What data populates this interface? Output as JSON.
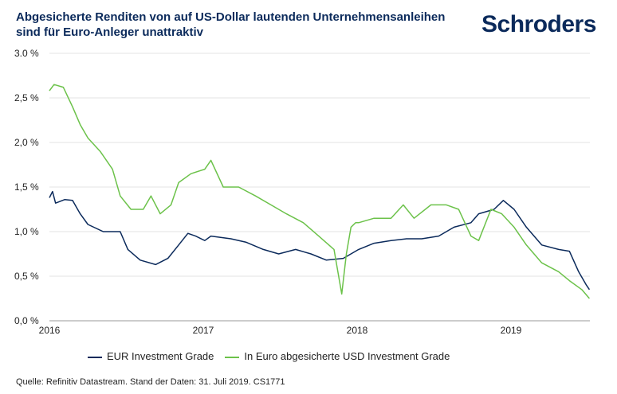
{
  "logo_text": "Schroders",
  "chart_data": {
    "type": "line",
    "title": "Abgesicherte Renditen von auf US-Dollar lautenden Unternehmensanleihen sind für Euro-Anleger unattraktiv",
    "xlabel": "",
    "ylabel": "",
    "xlim": [
      2016,
      2019.52
    ],
    "ylim": [
      0,
      3
    ],
    "y_ticks": [
      "0,0 %",
      "0,5 %",
      "1,0 %",
      "1,5 %",
      "2,0 %",
      "2,5 %",
      "3.0 %"
    ],
    "y_tick_values": [
      0,
      0.5,
      1,
      1.5,
      2,
      2.5,
      3
    ],
    "x_ticks": [
      "2016",
      "2017",
      "2018",
      "2019"
    ],
    "x_tick_values": [
      2016,
      2017,
      2018,
      2019
    ],
    "grid": true,
    "legend_position": "bottom",
    "series": [
      {
        "name": "EUR Investment Grade",
        "color": "#0b2a5b",
        "x": [
          2016.0,
          2016.02,
          2016.04,
          2016.1,
          2016.15,
          2016.2,
          2016.25,
          2016.35,
          2016.46,
          2016.51,
          2016.59,
          2016.69,
          2016.77,
          2016.84,
          2016.9,
          2016.95,
          2017.01,
          2017.05,
          2017.18,
          2017.28,
          2017.39,
          2017.49,
          2017.6,
          2017.7,
          2017.8,
          2017.91,
          2018.01,
          2018.11,
          2018.22,
          2018.32,
          2018.42,
          2018.53,
          2018.63,
          2018.74,
          2018.79,
          2018.89,
          2018.95,
          2019.02,
          2019.1,
          2019.2,
          2019.31,
          2019.38,
          2019.44,
          2019.49,
          2019.51
        ],
        "y": [
          1.38,
          1.45,
          1.32,
          1.36,
          1.35,
          1.2,
          1.08,
          1.0,
          1.0,
          0.8,
          0.68,
          0.63,
          0.7,
          0.85,
          0.98,
          0.95,
          0.9,
          0.95,
          0.92,
          0.88,
          0.8,
          0.75,
          0.8,
          0.75,
          0.68,
          0.7,
          0.8,
          0.87,
          0.9,
          0.92,
          0.92,
          0.95,
          1.05,
          1.1,
          1.2,
          1.25,
          1.35,
          1.25,
          1.05,
          0.85,
          0.8,
          0.78,
          0.55,
          0.4,
          0.35
        ]
      },
      {
        "name": "In Euro abgesicherte USD Investment Grade",
        "color": "#6cc24a",
        "x": [
          2016.0,
          2016.03,
          2016.09,
          2016.15,
          2016.2,
          2016.25,
          2016.33,
          2016.41,
          2016.46,
          2016.53,
          2016.61,
          2016.66,
          2016.72,
          2016.79,
          2016.84,
          2016.92,
          2017.01,
          2017.05,
          2017.13,
          2017.23,
          2017.34,
          2017.44,
          2017.54,
          2017.65,
          2017.75,
          2017.85,
          2017.9,
          2017.93,
          2017.96,
          2017.99,
          2018.01,
          2018.11,
          2018.22,
          2018.3,
          2018.37,
          2018.48,
          2018.58,
          2018.66,
          2018.74,
          2018.79,
          2018.87,
          2018.94,
          2019.02,
          2019.1,
          2019.2,
          2019.31,
          2019.38,
          2019.46,
          2019.51
        ],
        "y": [
          2.58,
          2.65,
          2.62,
          2.4,
          2.2,
          2.05,
          1.9,
          1.7,
          1.4,
          1.25,
          1.25,
          1.4,
          1.2,
          1.3,
          1.55,
          1.65,
          1.7,
          1.8,
          1.5,
          1.5,
          1.4,
          1.3,
          1.2,
          1.1,
          0.95,
          0.8,
          0.3,
          0.75,
          1.05,
          1.1,
          1.1,
          1.15,
          1.15,
          1.3,
          1.15,
          1.3,
          1.3,
          1.25,
          0.95,
          0.9,
          1.25,
          1.2,
          1.05,
          0.85,
          0.65,
          0.55,
          0.45,
          0.35,
          0.25
        ]
      }
    ],
    "source": "Quelle: Refinitiv Datastream. Stand der Daten: 31. Juli 2019. CS1771"
  }
}
